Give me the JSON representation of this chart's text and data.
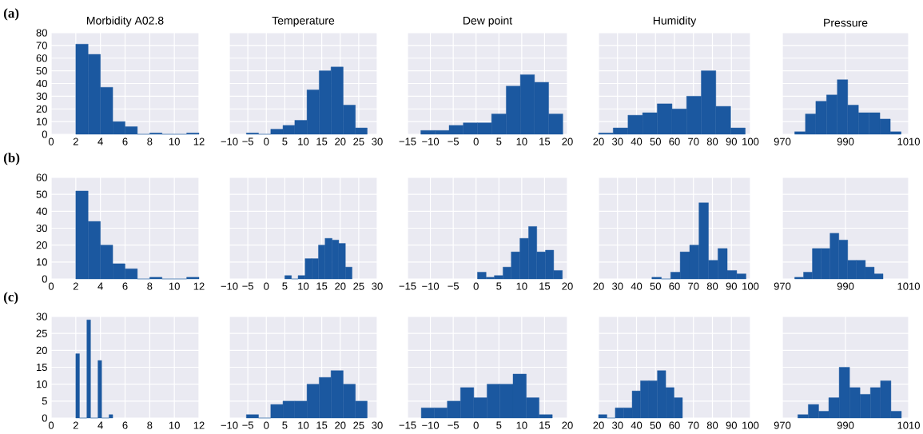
{
  "chart_data": [
    {
      "type": "histogram",
      "title": "Morbidity A02.8",
      "annotations": [
        "(a)"
      ],
      "bins": [
        2,
        3,
        4,
        5,
        6,
        7,
        8,
        9,
        10,
        11,
        12
      ],
      "values": [
        71,
        63,
        37,
        10,
        6,
        0,
        1,
        0,
        0,
        1
      ],
      "color": "#1b58a0",
      "xlim": [
        0,
        12
      ],
      "xticks": [
        0,
        2,
        4,
        6,
        8,
        10,
        12
      ],
      "ylim": [
        0,
        80
      ],
      "yticks": [
        0,
        10,
        20,
        30,
        40,
        50,
        60,
        70,
        80
      ],
      "grid": true
    },
    {
      "type": "histogram",
      "title": "Temperature",
      "bins": [
        -5.4,
        -2.1,
        1.2,
        4.5,
        7.7,
        11.0,
        14.3,
        17.5,
        20.8,
        24.1,
        27.3
      ],
      "values": [
        1,
        0,
        4,
        7,
        11,
        35,
        50,
        53,
        23,
        5
      ],
      "color": "#1b58a0",
      "xlim": [
        -10,
        30
      ],
      "xticks": [
        {
          "value": -10,
          "label": "−10"
        },
        {
          "value": -5,
          "label": "−5"
        },
        0,
        5,
        10,
        15,
        20,
        25,
        30
      ],
      "ylim": [
        0,
        80
      ],
      "yticks": [
        0,
        10,
        20,
        30,
        40,
        50,
        60,
        70,
        80
      ],
      "grid": true,
      "tick_labels": "x"
    },
    {
      "type": "histogram",
      "title": "Dew point",
      "bins": [
        -12.1,
        -9.0,
        -5.9,
        -2.8,
        0.3,
        3.4,
        6.6,
        9.7,
        12.8,
        15.9,
        19.0
      ],
      "values": [
        3,
        3,
        7,
        9,
        9,
        16,
        38,
        47,
        41,
        16
      ],
      "color": "#1b58a0",
      "xlim": [
        -15,
        20
      ],
      "xticks": [
        {
          "value": -15,
          "label": "−15"
        },
        {
          "value": -10,
          "label": "−10"
        },
        {
          "value": -5,
          "label": "−5"
        },
        0,
        5,
        10,
        15,
        20
      ],
      "ylim": [
        0,
        80
      ],
      "yticks": [
        0,
        10,
        20,
        30,
        40,
        50,
        60,
        70,
        80
      ],
      "grid": true,
      "tick_labels": "x"
    },
    {
      "type": "histogram",
      "title": "Humidity",
      "bins": [
        20.0,
        27.7,
        35.5,
        43.2,
        50.9,
        58.7,
        66.4,
        74.1,
        81.8,
        89.6,
        97.3
      ],
      "values": [
        1,
        5,
        15,
        17,
        24,
        20,
        30,
        50,
        22,
        5
      ],
      "color": "#1b58a0",
      "xlim": [
        20,
        100
      ],
      "xticks": [
        20,
        30,
        40,
        50,
        60,
        70,
        80,
        90,
        100
      ],
      "ylim": [
        0,
        80
      ],
      "yticks": [
        0,
        10,
        20,
        30,
        40,
        50,
        60,
        70,
        80
      ],
      "grid": true,
      "tick_labels": "x"
    },
    {
      "type": "histogram",
      "title": "Pressure",
      "bins": [
        973.9,
        977.3,
        980.6,
        984.0,
        987.4,
        990.7,
        994.1,
        997.5,
        1000.9,
        1004.2,
        1007.6
      ],
      "values": [
        2,
        16,
        26,
        31,
        43,
        23,
        17,
        17,
        12,
        2
      ],
      "color": "#1b58a0",
      "xlim": [
        970,
        1010
      ],
      "xticks": [
        970,
        990,
        1010
      ],
      "ylim": [
        0,
        80
      ],
      "yticks": [
        0,
        10,
        20,
        30,
        40,
        50,
        60,
        70,
        80
      ],
      "grid": true,
      "tick_labels": "x"
    },
    {
      "type": "histogram",
      "annotations": [
        "(b)"
      ],
      "bins": [
        2,
        3,
        4,
        5,
        6,
        7,
        8,
        9,
        10,
        11,
        12
      ],
      "values": [
        52,
        34,
        20,
        9,
        6,
        0,
        1,
        0,
        0,
        1
      ],
      "color": "#1b58a0",
      "xlim": [
        0,
        12
      ],
      "xticks": [
        0,
        2,
        4,
        6,
        8,
        10,
        12
      ],
      "ylim": [
        0,
        60
      ],
      "yticks": [
        0,
        10,
        20,
        30,
        40,
        50,
        60
      ],
      "grid": true
    },
    {
      "type": "histogram",
      "bins": [
        5.0,
        6.8,
        8.6,
        10.5,
        12.3,
        14.1,
        15.9,
        17.8,
        19.6,
        21.4,
        23.2
      ],
      "values": [
        2,
        0,
        2,
        12,
        12,
        20,
        24,
        23,
        21,
        7
      ],
      "color": "#1b58a0",
      "xlim": [
        -10,
        30
      ],
      "xticks": [
        {
          "value": -10,
          "label": "−10"
        },
        {
          "value": -5,
          "label": "−5"
        },
        0,
        5,
        10,
        15,
        20,
        25,
        30
      ],
      "ylim": [
        0,
        60
      ],
      "yticks": [
        0,
        10,
        20,
        30,
        40,
        50,
        60
      ],
      "grid": true,
      "tick_labels": "x"
    },
    {
      "type": "histogram",
      "bins": [
        0.3,
        2.2,
        4.0,
        5.9,
        7.7,
        9.6,
        11.5,
        13.3,
        15.2,
        17.0,
        18.9
      ],
      "values": [
        4,
        1,
        2,
        7,
        16,
        24,
        31,
        16,
        17,
        5
      ],
      "color": "#1b58a0",
      "xlim": [
        -15,
        20
      ],
      "xticks": [
        {
          "value": -15,
          "label": "−15"
        },
        {
          "value": -10,
          "label": "−10"
        },
        {
          "value": -5,
          "label": "−5"
        },
        0,
        5,
        10,
        15,
        20
      ],
      "ylim": [
        0,
        60
      ],
      "yticks": [
        0,
        10,
        20,
        30,
        40,
        50,
        60
      ],
      "grid": true,
      "tick_labels": "x"
    },
    {
      "type": "histogram",
      "bins": [
        48.1,
        53.1,
        58.0,
        63.0,
        68.0,
        72.9,
        77.9,
        82.9,
        87.8,
        92.8,
        97.7
      ],
      "values": [
        1,
        0,
        4,
        16,
        20,
        45,
        11,
        18,
        5,
        3
      ],
      "color": "#1b58a0",
      "xlim": [
        20,
        100
      ],
      "xticks": [
        20,
        30,
        40,
        50,
        60,
        70,
        80,
        90,
        100
      ],
      "ylim": [
        0,
        60
      ],
      "yticks": [
        0,
        10,
        20,
        30,
        40,
        50,
        60
      ],
      "grid": true,
      "tick_labels": "x"
    },
    {
      "type": "histogram",
      "bins": [
        973.9,
        976.7,
        979.5,
        982.3,
        985.1,
        987.9,
        990.7,
        993.5,
        996.3,
        999.1,
        1001.9
      ],
      "values": [
        1,
        4,
        18,
        18,
        27,
        23,
        11,
        11,
        7,
        3
      ],
      "color": "#1b58a0",
      "xlim": [
        970,
        1010
      ],
      "xticks": [
        970,
        990,
        1010
      ],
      "ylim": [
        0,
        60
      ],
      "yticks": [
        0,
        10,
        20,
        30,
        40,
        50,
        60
      ],
      "grid": true,
      "tick_labels": "x"
    },
    {
      "type": "histogram",
      "annotations": [
        "(c)"
      ],
      "bins": [
        2.0,
        2.3,
        2.6,
        2.9,
        3.2,
        3.5,
        3.8,
        4.1,
        4.4,
        4.7,
        5.0
      ],
      "values": [
        19,
        0,
        0,
        29,
        0,
        0,
        17,
        0,
        0,
        1
      ],
      "color": "#1b58a0",
      "xlim": [
        0,
        12
      ],
      "xticks": [
        0,
        2,
        4,
        6,
        8,
        10,
        12
      ],
      "ylim": [
        0,
        30
      ],
      "yticks": [
        0,
        5,
        10,
        15,
        20,
        25,
        30
      ],
      "grid": true
    },
    {
      "type": "histogram",
      "bins": [
        -5.4,
        -2.1,
        1.2,
        4.5,
        7.7,
        11.0,
        14.3,
        17.5,
        20.8,
        24.1,
        27.3
      ],
      "values": [
        1,
        0,
        4,
        5,
        5,
        10,
        12,
        14,
        10,
        5
      ],
      "color": "#1b58a0",
      "xlim": [
        -10,
        30
      ],
      "xticks": [
        {
          "value": -10,
          "label": "−10"
        },
        {
          "value": -5,
          "label": "−5"
        },
        0,
        5,
        10,
        15,
        20,
        25,
        30
      ],
      "ylim": [
        0,
        30
      ],
      "yticks": [
        0,
        5,
        10,
        15,
        20,
        25,
        30
      ],
      "grid": true,
      "tick_labels": "x"
    },
    {
      "type": "histogram",
      "bins": [
        -12.0,
        -9.1,
        -6.3,
        -3.4,
        -0.5,
        2.4,
        5.2,
        8.1,
        11.0,
        13.8,
        16.7
      ],
      "values": [
        3,
        3,
        5,
        9,
        6,
        10,
        10,
        13,
        6,
        1
      ],
      "color": "#1b58a0",
      "xlim": [
        -15,
        20
      ],
      "xticks": [
        {
          "value": -15,
          "label": "−15"
        },
        {
          "value": -10,
          "label": "−10"
        },
        {
          "value": -5,
          "label": "−5"
        },
        0,
        5,
        10,
        15,
        20
      ],
      "ylim": [
        0,
        30
      ],
      "yticks": [
        0,
        5,
        10,
        15,
        20,
        25,
        30
      ],
      "grid": true,
      "tick_labels": "x"
    },
    {
      "type": "histogram",
      "bins": [
        20.0,
        24.4,
        28.8,
        33.3,
        37.7,
        42.1,
        46.5,
        51.0,
        55.4,
        59.8,
        64.2
      ],
      "values": [
        1,
        0,
        3,
        3,
        8,
        11,
        11,
        14,
        9,
        6
      ],
      "color": "#1b58a0",
      "xlim": [
        20,
        100
      ],
      "xticks": [
        20,
        30,
        40,
        50,
        60,
        70,
        80,
        90,
        100
      ],
      "ylim": [
        0,
        30
      ],
      "yticks": [
        0,
        5,
        10,
        15,
        20,
        25,
        30
      ],
      "grid": true,
      "tick_labels": "x"
    },
    {
      "type": "histogram",
      "bins": [
        974.9,
        978.2,
        981.5,
        984.7,
        988.0,
        991.3,
        994.6,
        997.9,
        1001.1,
        1004.4,
        1007.7
      ],
      "values": [
        1,
        4,
        2,
        6,
        15,
        9,
        7,
        9,
        11,
        2
      ],
      "color": "#1b58a0",
      "xlim": [
        970,
        1010
      ],
      "xticks": [
        970,
        990,
        1010
      ],
      "ylim": [
        0,
        30
      ],
      "yticks": [
        0,
        5,
        10,
        15,
        20,
        25,
        30
      ],
      "grid": true,
      "tick_labels": "x"
    }
  ]
}
